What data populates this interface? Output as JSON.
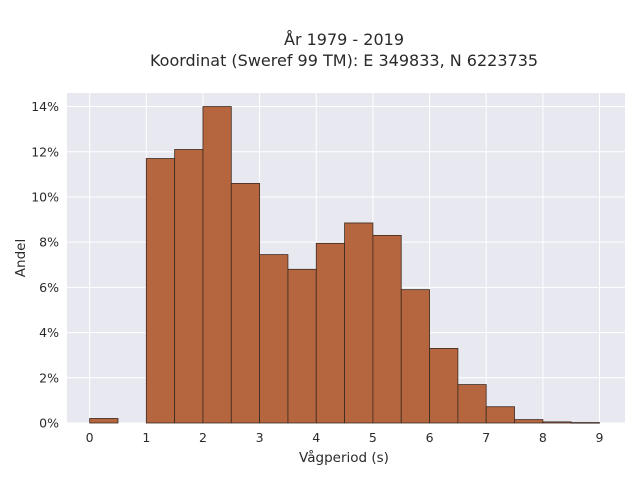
{
  "chart_data": {
    "type": "bar",
    "title": "År 1979 - 2019",
    "subtitle": "Koordinat (Sweref 99 TM): E 349833, N 6223735",
    "xlabel": "Vågperiod (s)",
    "ylabel": "Andel",
    "bin_width": 0.5,
    "bins": [
      {
        "x0": 0.0,
        "value": 0.2
      },
      {
        "x0": 0.5,
        "value": 0.0
      },
      {
        "x0": 1.0,
        "value": 11.7
      },
      {
        "x0": 1.5,
        "value": 12.1
      },
      {
        "x0": 2.0,
        "value": 14.0
      },
      {
        "x0": 2.5,
        "value": 10.6
      },
      {
        "x0": 3.0,
        "value": 7.45
      },
      {
        "x0": 3.5,
        "value": 6.8
      },
      {
        "x0": 4.0,
        "value": 7.95
      },
      {
        "x0": 4.5,
        "value": 8.85
      },
      {
        "x0": 5.0,
        "value": 8.3
      },
      {
        "x0": 5.5,
        "value": 5.9
      },
      {
        "x0": 6.0,
        "value": 3.3
      },
      {
        "x0": 6.5,
        "value": 1.7
      },
      {
        "x0": 7.0,
        "value": 0.72
      },
      {
        "x0": 7.5,
        "value": 0.15
      },
      {
        "x0": 8.0,
        "value": 0.05
      },
      {
        "x0": 8.5,
        "value": 0.02
      }
    ],
    "xlim": [
      -0.4,
      9.45
    ],
    "ylim": [
      0,
      14.6
    ],
    "x_ticks": [
      "0",
      "1",
      "2",
      "3",
      "4",
      "5",
      "6",
      "7",
      "8",
      "9"
    ],
    "y_ticks": [
      "0%",
      "2%",
      "4%",
      "6%",
      "8%",
      "10%",
      "12%",
      "14%"
    ],
    "grid": true,
    "colors": {
      "bar_fill": "#b5663f",
      "bar_edge": "#3b2a20",
      "plot_bg": "#e8e8f0",
      "grid": "#ffffff"
    }
  }
}
